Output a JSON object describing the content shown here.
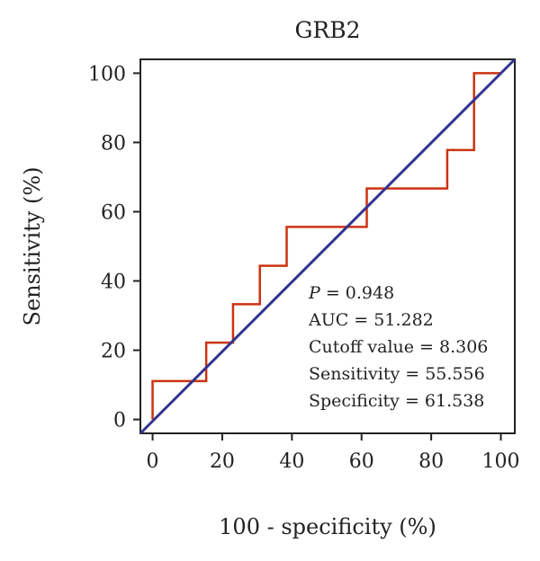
{
  "chart_data": {
    "type": "line",
    "title": "GRB2",
    "xlabel": "100 - specificity (%)",
    "ylabel": "Sensitivity (%)",
    "xlim": [
      -3.5,
      104
    ],
    "ylim": [
      -4,
      104
    ],
    "x_ticks": [
      "0",
      "20",
      "40",
      "60",
      "80",
      "100"
    ],
    "y_ticks": [
      "0",
      "20",
      "40",
      "60",
      "80",
      "100"
    ],
    "grid": false,
    "series": [
      {
        "style": "step",
        "color": "#cc3311",
        "points": [
          [
            0,
            0
          ],
          [
            0,
            11.1
          ],
          [
            15.4,
            11.1
          ],
          [
            15.4,
            22.2
          ],
          [
            23.1,
            22.2
          ],
          [
            23.1,
            33.3
          ],
          [
            30.8,
            33.3
          ],
          [
            30.8,
            44.4
          ],
          [
            38.5,
            44.4
          ],
          [
            38.5,
            55.6
          ],
          [
            61.5,
            55.6
          ],
          [
            61.5,
            66.7
          ],
          [
            84.6,
            66.7
          ],
          [
            84.6,
            77.8
          ],
          [
            92.3,
            77.8
          ],
          [
            92.3,
            100
          ],
          [
            100,
            100
          ]
        ]
      },
      {
        "style": "diagonal",
        "color": "#33338f",
        "points": [
          [
            -3.5,
            -4
          ],
          [
            104,
            104
          ]
        ]
      }
    ],
    "annotations": {
      "p_label": "P",
      "p_value": " = 0.948",
      "auc": "AUC = 51.282",
      "cutoff": "Cutoff value = 8.306",
      "sensitivity": "Sensitivity = 55.556",
      "specificity": "Specificity = 61.538"
    }
  }
}
